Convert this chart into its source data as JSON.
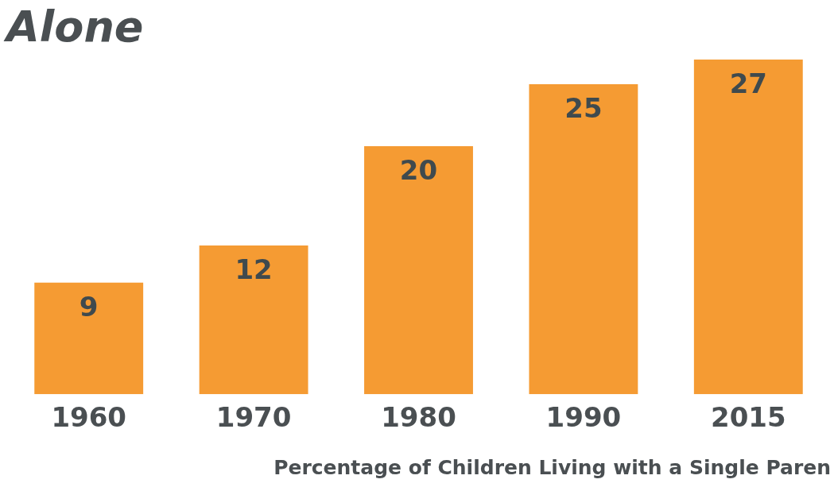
{
  "chart_data": {
    "type": "bar",
    "title": "Alone",
    "xlabel": "Percentage of Children Living with a Single Paren",
    "categories": [
      "1960",
      "1970",
      "1980",
      "1990",
      "2015"
    ],
    "values": [
      9,
      12,
      20,
      25,
      27
    ],
    "color": "#f59b33",
    "data_labels": true,
    "grid": false,
    "legend": false
  }
}
